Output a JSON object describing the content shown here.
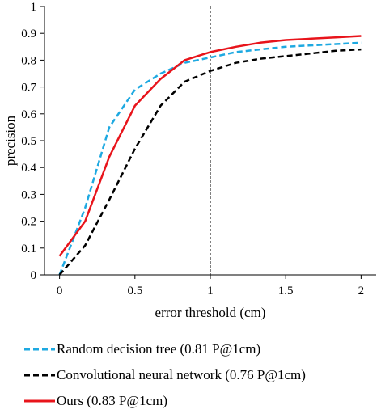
{
  "chart_data": {
    "type": "line",
    "xlabel": "error threshold (cm)",
    "ylabel": "precision",
    "xlim": [
      -0.1,
      2.1
    ],
    "ylim": [
      0,
      1
    ],
    "x_ticks": [
      "0",
      "0.5",
      "1",
      "1.5",
      "2"
    ],
    "y_ticks": [
      "0",
      "0.1",
      "0.2",
      "0.3",
      "0.4",
      "0.5",
      "0.6",
      "0.7",
      "0.8",
      "0.9",
      "1"
    ],
    "reference_line_x": 1,
    "grid": false,
    "legend_position": "bottom",
    "series": [
      {
        "name": "Random decision tree (0.81 P@1cm)",
        "color": "#1ea9e1",
        "dash": "dashed",
        "x": [
          0,
          0.17,
          0.33,
          0.5,
          0.67,
          0.83,
          1.0,
          1.17,
          1.33,
          1.5,
          1.67,
          1.83,
          2.0
        ],
        "y": [
          0.0,
          0.25,
          0.55,
          0.69,
          0.75,
          0.79,
          0.81,
          0.83,
          0.84,
          0.85,
          0.855,
          0.86,
          0.865
        ]
      },
      {
        "name": "Convolutional neural network (0.76 P@1cm)",
        "color": "#000000",
        "dash": "dashed",
        "x": [
          0,
          0.17,
          0.33,
          0.5,
          0.67,
          0.83,
          1.0,
          1.17,
          1.33,
          1.5,
          1.67,
          1.83,
          2.0
        ],
        "y": [
          0.0,
          0.11,
          0.28,
          0.47,
          0.63,
          0.72,
          0.76,
          0.79,
          0.805,
          0.815,
          0.825,
          0.835,
          0.84
        ]
      },
      {
        "name": "Ours  (0.83 P@1cm)",
        "color": "#e8141b",
        "dash": "solid",
        "x": [
          0,
          0.17,
          0.33,
          0.5,
          0.67,
          0.83,
          1.0,
          1.17,
          1.33,
          1.5,
          1.67,
          1.83,
          2.0
        ],
        "y": [
          0.07,
          0.2,
          0.44,
          0.63,
          0.73,
          0.8,
          0.83,
          0.85,
          0.865,
          0.875,
          0.88,
          0.885,
          0.89
        ]
      }
    ]
  }
}
